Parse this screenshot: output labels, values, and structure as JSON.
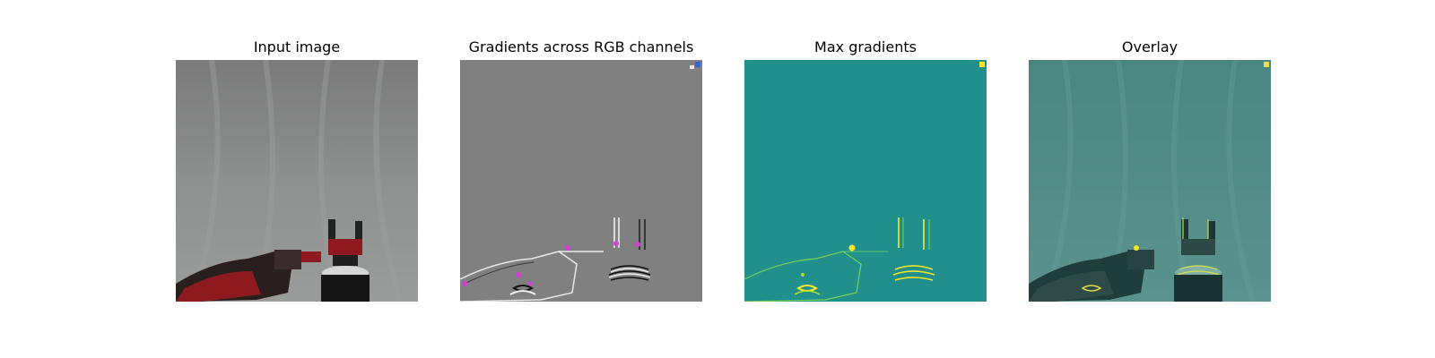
{
  "figure": {
    "panels": [
      {
        "id": "input",
        "title": "Input image",
        "icon": "robot-gripper-photo"
      },
      {
        "id": "gradients-rgb",
        "title": "Gradients across RGB channels",
        "icon": "rgb-gradient-map"
      },
      {
        "id": "max-gradients",
        "title": "Max gradients",
        "icon": "viridis-gradient-map"
      },
      {
        "id": "overlay",
        "title": "Overlay",
        "icon": "gradient-overlay-photo"
      }
    ],
    "colors": {
      "backdrop_gray": "#8a8c8b",
      "gradient_gray": "#808080",
      "viridis_base": "#21908c",
      "viridis_high": "#fde725",
      "overlay_base": "#4f8a86",
      "robot_red": "#8e1a1f",
      "magenta": "#d43fd8"
    }
  }
}
